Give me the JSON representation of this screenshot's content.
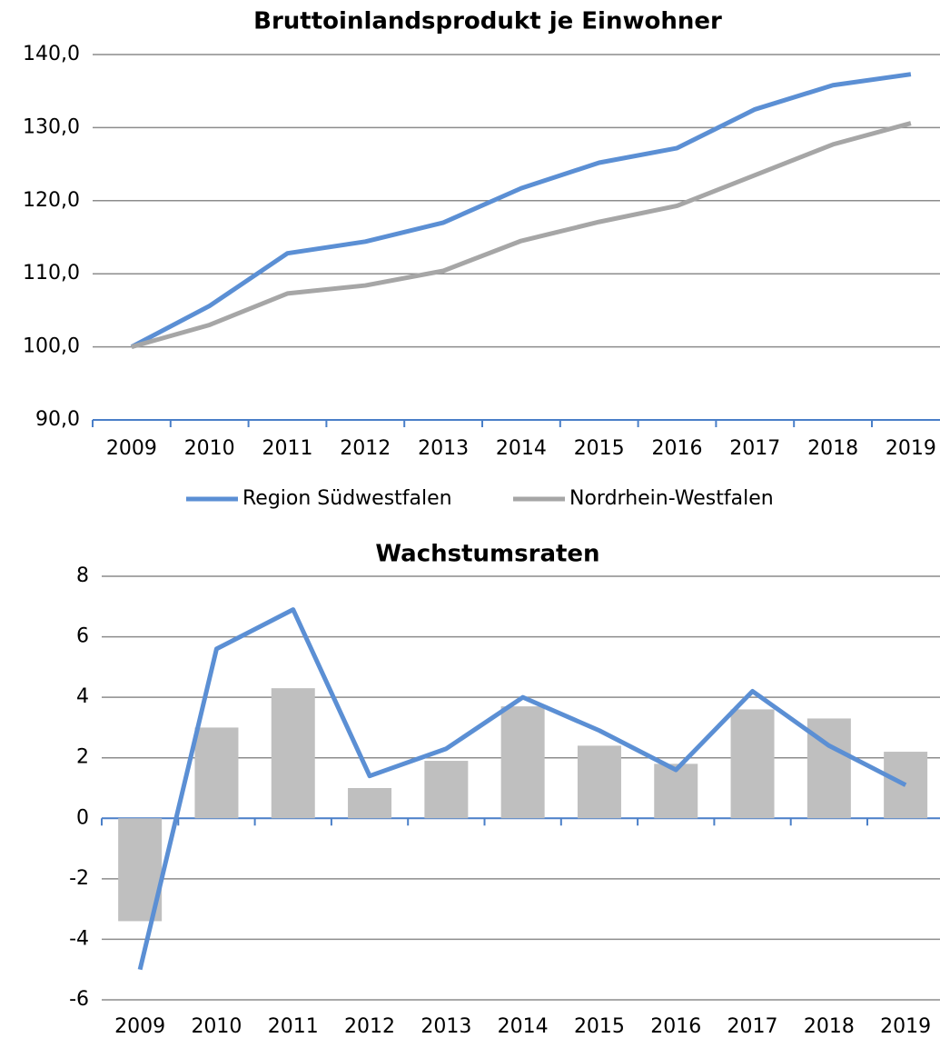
{
  "chart_data": [
    {
      "type": "line",
      "title": "Bruttoinlandsprodukt je Einwohner",
      "categories": [
        "2009",
        "2010",
        "2011",
        "2012",
        "2013",
        "2014",
        "2015",
        "2016",
        "2017",
        "2018",
        "2019"
      ],
      "series": [
        {
          "name": "Region Südwestfalen",
          "color": "#5b8fd4",
          "values": [
            100.0,
            105.6,
            112.8,
            114.4,
            117.0,
            121.7,
            125.2,
            127.2,
            132.5,
            135.8,
            137.3
          ]
        },
        {
          "name": "Nordrhein-Westfalen",
          "color": "#a6a6a6",
          "values": [
            100.0,
            103.0,
            107.3,
            108.4,
            110.4,
            114.5,
            117.1,
            119.3,
            123.5,
            127.7,
            130.6
          ]
        }
      ],
      "ylim": [
        90,
        140
      ],
      "yticks": [
        {
          "value": 90,
          "label": "90,0"
        },
        {
          "value": 100,
          "label": "100,0"
        },
        {
          "value": 110,
          "label": "110,0"
        },
        {
          "value": 120,
          "label": "120,0"
        },
        {
          "value": 130,
          "label": "130,0"
        },
        {
          "value": 140,
          "label": "140,0"
        }
      ],
      "grid": true,
      "legend": "bottom"
    },
    {
      "type": "combo",
      "title": "Wachstumsraten",
      "categories": [
        "2009",
        "2010",
        "2011",
        "2012",
        "2013",
        "2014",
        "2015",
        "2016",
        "2017",
        "2018",
        "2019"
      ],
      "series": [
        {
          "type": "bar",
          "color": "#bfbfbf",
          "values": [
            -3.4,
            3.0,
            4.3,
            1.0,
            1.9,
            3.7,
            2.4,
            1.8,
            3.6,
            3.3,
            2.2
          ]
        },
        {
          "type": "line",
          "color": "#5b8fd4",
          "values": [
            -5.0,
            5.6,
            6.9,
            1.4,
            2.3,
            4.0,
            2.9,
            1.6,
            4.2,
            2.4,
            1.1
          ]
        }
      ],
      "ylim": [
        -6,
        8
      ],
      "yticks": [
        -6,
        -4,
        -2,
        0,
        2,
        4,
        6,
        8
      ],
      "grid": true
    }
  ]
}
